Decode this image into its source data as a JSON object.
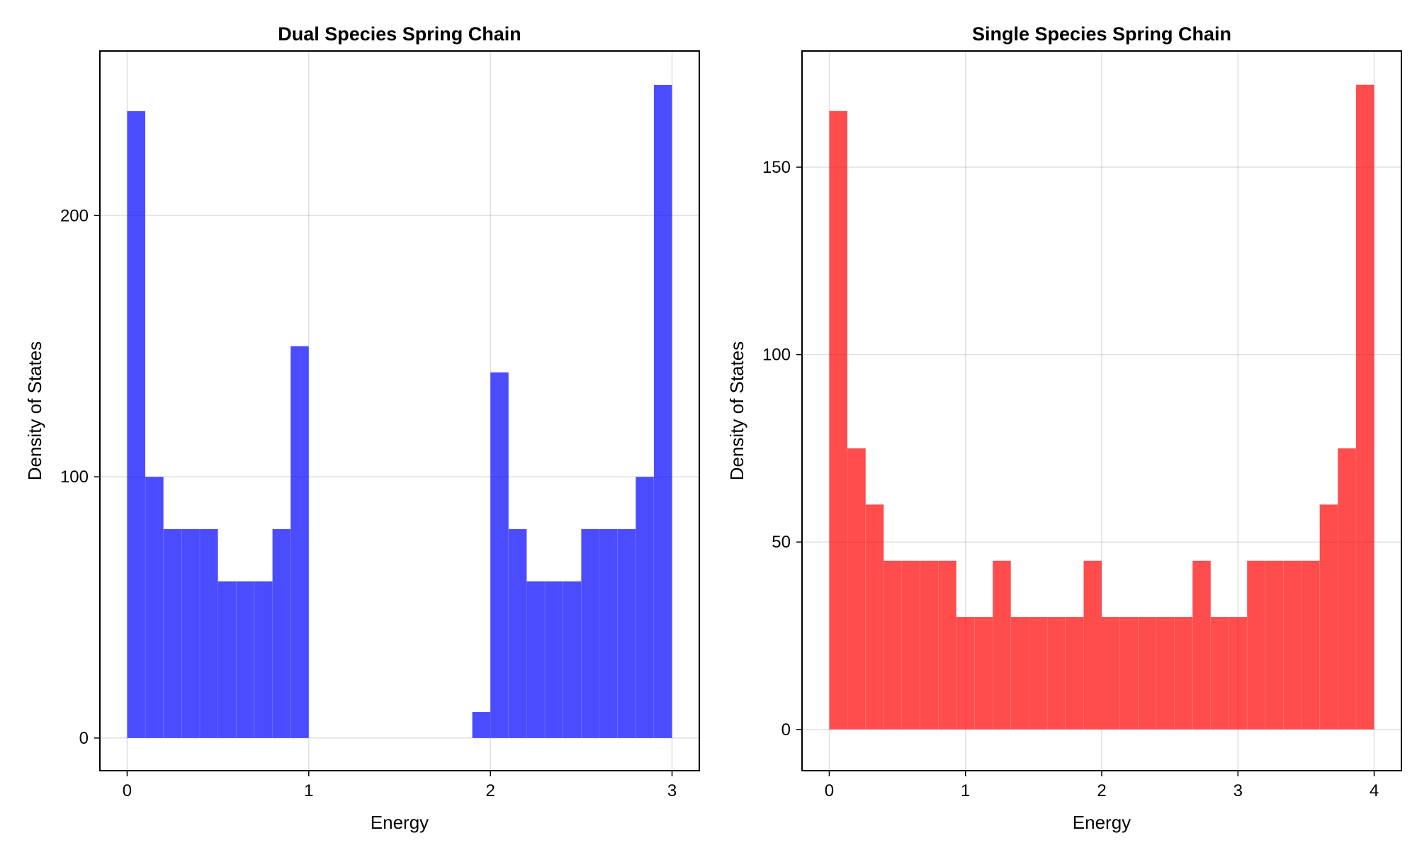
{
  "chart_data": [
    {
      "type": "bar",
      "title": "Dual Species Spring Chain",
      "xlabel": "Energy",
      "ylabel": "Density of States",
      "xlim": [
        -0.15,
        3.15
      ],
      "ylim": [
        -12.5,
        263
      ],
      "xticks": [
        0,
        1,
        2,
        3
      ],
      "yticks": [
        0,
        100,
        200
      ],
      "grid": true,
      "color": "#0000ff",
      "bar_opacity": 0.7,
      "bins": [
        {
          "x0": 0.0,
          "x1": 0.1,
          "y": 240
        },
        {
          "x0": 0.1,
          "x1": 0.2,
          "y": 100
        },
        {
          "x0": 0.2,
          "x1": 0.3,
          "y": 80
        },
        {
          "x0": 0.3,
          "x1": 0.4,
          "y": 80
        },
        {
          "x0": 0.4,
          "x1": 0.5,
          "y": 80
        },
        {
          "x0": 0.5,
          "x1": 0.6,
          "y": 60
        },
        {
          "x0": 0.6,
          "x1": 0.7,
          "y": 60
        },
        {
          "x0": 0.7,
          "x1": 0.8,
          "y": 60
        },
        {
          "x0": 0.8,
          "x1": 0.9,
          "y": 80
        },
        {
          "x0": 0.9,
          "x1": 1.0,
          "y": 150
        },
        {
          "x0": 1.9,
          "x1": 2.0,
          "y": 10
        },
        {
          "x0": 2.0,
          "x1": 2.1,
          "y": 140
        },
        {
          "x0": 2.1,
          "x1": 2.2,
          "y": 80
        },
        {
          "x0": 2.2,
          "x1": 2.3,
          "y": 60
        },
        {
          "x0": 2.3,
          "x1": 2.4,
          "y": 60
        },
        {
          "x0": 2.4,
          "x1": 2.5,
          "y": 60
        },
        {
          "x0": 2.5,
          "x1": 2.6,
          "y": 80
        },
        {
          "x0": 2.6,
          "x1": 2.7,
          "y": 80
        },
        {
          "x0": 2.7,
          "x1": 2.8,
          "y": 80
        },
        {
          "x0": 2.8,
          "x1": 2.9,
          "y": 100
        },
        {
          "x0": 2.9,
          "x1": 3.0,
          "y": 250
        }
      ]
    },
    {
      "type": "bar",
      "title": "Single Species Spring Chain",
      "xlabel": "Energy",
      "ylabel": "Density of States",
      "xlim": [
        -0.2,
        4.2
      ],
      "ylim": [
        -11,
        181
      ],
      "xticks": [
        0,
        1,
        2,
        3,
        4
      ],
      "yticks": [
        0,
        50,
        100,
        150
      ],
      "grid": true,
      "color": "#ff0000",
      "bar_opacity": 0.7,
      "bins": [
        {
          "x0": 0.0,
          "x1": 0.133,
          "y": 165
        },
        {
          "x0": 0.133,
          "x1": 0.267,
          "y": 75
        },
        {
          "x0": 0.267,
          "x1": 0.4,
          "y": 60
        },
        {
          "x0": 0.4,
          "x1": 0.533,
          "y": 45
        },
        {
          "x0": 0.533,
          "x1": 0.667,
          "y": 45
        },
        {
          "x0": 0.667,
          "x1": 0.8,
          "y": 45
        },
        {
          "x0": 0.8,
          "x1": 0.933,
          "y": 45
        },
        {
          "x0": 0.933,
          "x1": 1.067,
          "y": 30
        },
        {
          "x0": 1.067,
          "x1": 1.2,
          "y": 30
        },
        {
          "x0": 1.2,
          "x1": 1.333,
          "y": 45
        },
        {
          "x0": 1.333,
          "x1": 1.467,
          "y": 30
        },
        {
          "x0": 1.467,
          "x1": 1.6,
          "y": 30
        },
        {
          "x0": 1.6,
          "x1": 1.733,
          "y": 30
        },
        {
          "x0": 1.733,
          "x1": 1.867,
          "y": 30
        },
        {
          "x0": 1.867,
          "x1": 2.0,
          "y": 45
        },
        {
          "x0": 2.0,
          "x1": 2.133,
          "y": 30
        },
        {
          "x0": 2.133,
          "x1": 2.267,
          "y": 30
        },
        {
          "x0": 2.267,
          "x1": 2.4,
          "y": 30
        },
        {
          "x0": 2.4,
          "x1": 2.533,
          "y": 30
        },
        {
          "x0": 2.533,
          "x1": 2.667,
          "y": 30
        },
        {
          "x0": 2.667,
          "x1": 2.8,
          "y": 45
        },
        {
          "x0": 2.8,
          "x1": 2.933,
          "y": 30
        },
        {
          "x0": 2.933,
          "x1": 3.067,
          "y": 30
        },
        {
          "x0": 3.067,
          "x1": 3.2,
          "y": 45
        },
        {
          "x0": 3.2,
          "x1": 3.333,
          "y": 45
        },
        {
          "x0": 3.333,
          "x1": 3.467,
          "y": 45
        },
        {
          "x0": 3.467,
          "x1": 3.6,
          "y": 45
        },
        {
          "x0": 3.6,
          "x1": 3.733,
          "y": 60
        },
        {
          "x0": 3.733,
          "x1": 3.867,
          "y": 75
        },
        {
          "x0": 3.867,
          "x1": 4.0,
          "y": 172
        }
      ]
    }
  ]
}
